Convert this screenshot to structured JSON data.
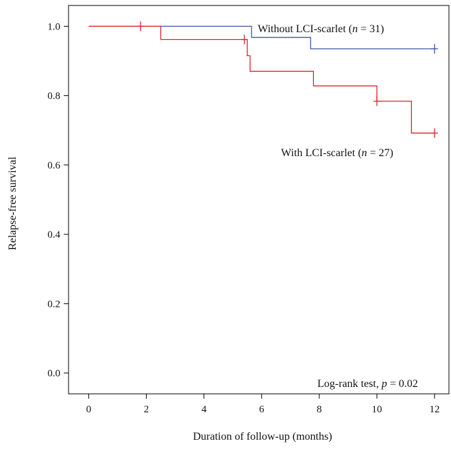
{
  "chart_data": {
    "type": "line",
    "subtype": "kaplan-meier-step",
    "xlabel": "Duration of follow-up (months)",
    "ylabel": "Relapse-free survival",
    "xlim": [
      -0.7,
      12.5
    ],
    "ylim": [
      -0.06,
      1.06
    ],
    "x_ticks": [
      0,
      2,
      4,
      6,
      8,
      10,
      12
    ],
    "y_ticks": [
      0.0,
      0.2,
      0.4,
      0.6,
      0.8,
      1.0
    ],
    "x_tick_labels": [
      "0",
      "2",
      "4",
      "6",
      "8",
      "10",
      "12"
    ],
    "y_tick_labels": [
      "0.0",
      "0.2",
      "0.4",
      "0.6",
      "0.8",
      "1.0"
    ],
    "grid": false,
    "series": [
      {
        "name": "Without LCI-scarlet",
        "color": "#3a56a8",
        "steps": [
          [
            0,
            1.0
          ],
          [
            5.65,
            0.968
          ],
          [
            7.7,
            0.935
          ],
          [
            12.0,
            0.935
          ]
        ],
        "censored": [
          [
            12.0,
            0.935
          ]
        ]
      },
      {
        "name": "With LCI-scarlet",
        "color": "#e0202c",
        "steps": [
          [
            0,
            1.0
          ],
          [
            2.5,
            0.962
          ],
          [
            5.5,
            0.915
          ],
          [
            5.6,
            0.87
          ],
          [
            7.8,
            0.828
          ],
          [
            10.0,
            0.784
          ],
          [
            11.2,
            0.692
          ],
          [
            12.0,
            0.692
          ]
        ],
        "censored": [
          [
            1.8,
            1.0
          ],
          [
            5.4,
            0.962
          ],
          [
            10.0,
            0.784
          ],
          [
            12.0,
            0.692
          ]
        ]
      }
    ],
    "labels": [
      {
        "series": "Without LCI-scarlet",
        "prefix": "Without  LCI-scarlet (",
        "n_var": "n",
        "rest": " = 31)"
      },
      {
        "series": "With LCI-scarlet",
        "prefix": "With LCI-scarlet (",
        "n_var": "n",
        "rest": " = 27)"
      }
    ],
    "test_annotation": {
      "prefix": "Log-rank test, ",
      "var": "p",
      "rest": " = 0.02"
    }
  }
}
